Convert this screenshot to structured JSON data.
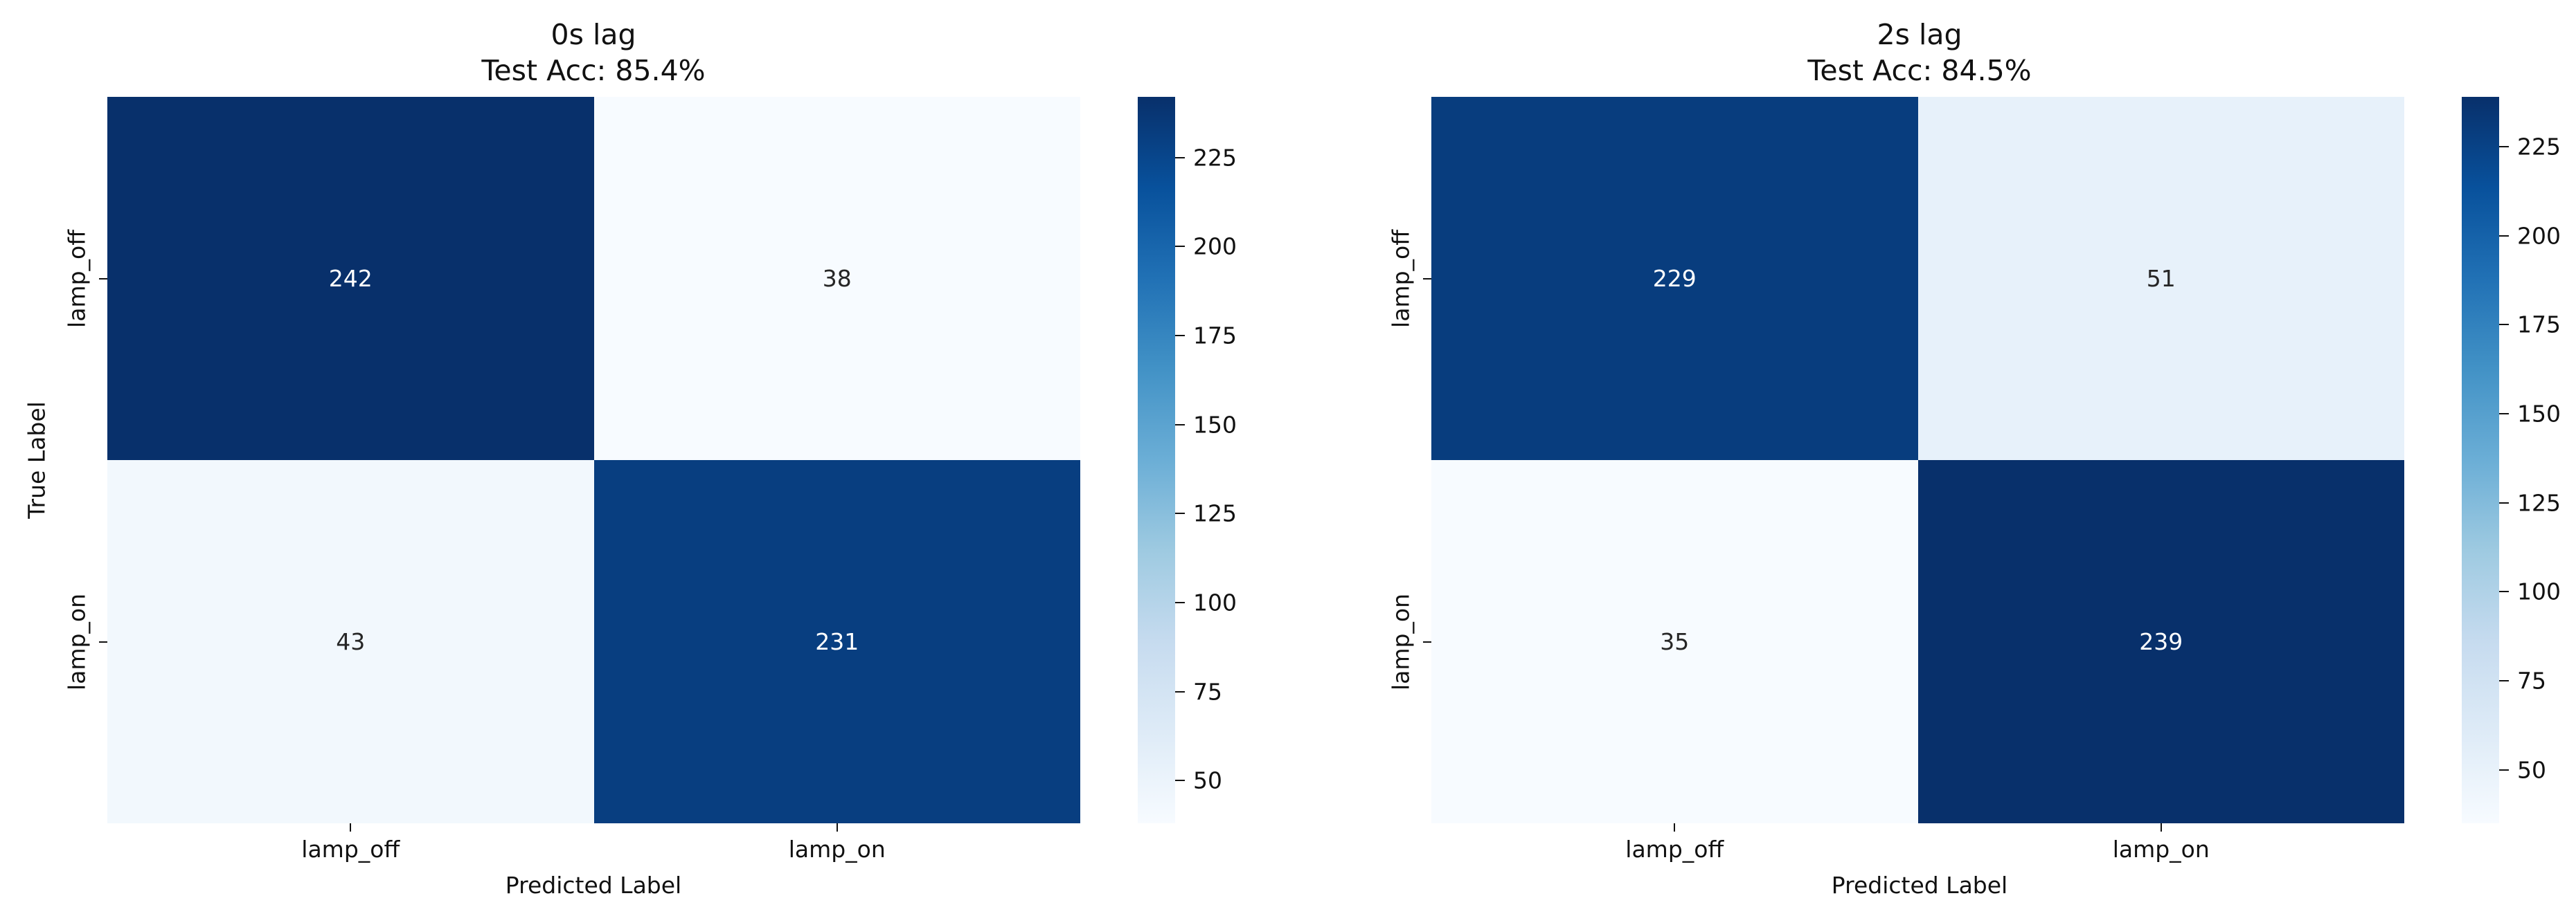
{
  "figure": {
    "background": "#ffffff",
    "text_color": "#111111",
    "annotation_text_on_dark": "#ffffff",
    "annotation_text_on_light": "#262626",
    "colormap_name": "Blues",
    "colormap_anchors": [
      "#f7fbff",
      "#deebf7",
      "#c6dbef",
      "#9ecae1",
      "#6baed6",
      "#4292c6",
      "#2171b5",
      "#08519c",
      "#08306b"
    ]
  },
  "chart_data": [
    {
      "type": "heatmap",
      "title": "0s lag",
      "subtitle": "Test Acc: 85.4%",
      "xlabel": "Predicted Label",
      "ylabel": "True Label",
      "x_categories": [
        "lamp_off",
        "lamp_on"
      ],
      "y_categories": [
        "lamp_off",
        "lamp_on"
      ],
      "values": [
        [
          242,
          38
        ],
        [
          43,
          231
        ]
      ],
      "vmin": 38,
      "vmax": 242,
      "colorbar_ticks": [
        50,
        75,
        100,
        125,
        150,
        175,
        200,
        225
      ],
      "legend_position": "right-colorbar",
      "grid": false
    },
    {
      "type": "heatmap",
      "title": "2s lag",
      "subtitle": "Test Acc: 84.5%",
      "xlabel": "Predicted Label",
      "x_categories": [
        "lamp_off",
        "lamp_on"
      ],
      "y_categories": [
        "lamp_off",
        "lamp_on"
      ],
      "values": [
        [
          229,
          51
        ],
        [
          35,
          239
        ]
      ],
      "vmin": 35,
      "vmax": 239,
      "colorbar_ticks": [
        50,
        75,
        100,
        125,
        150,
        175,
        200,
        225
      ],
      "legend_position": "right-colorbar",
      "grid": false
    }
  ]
}
